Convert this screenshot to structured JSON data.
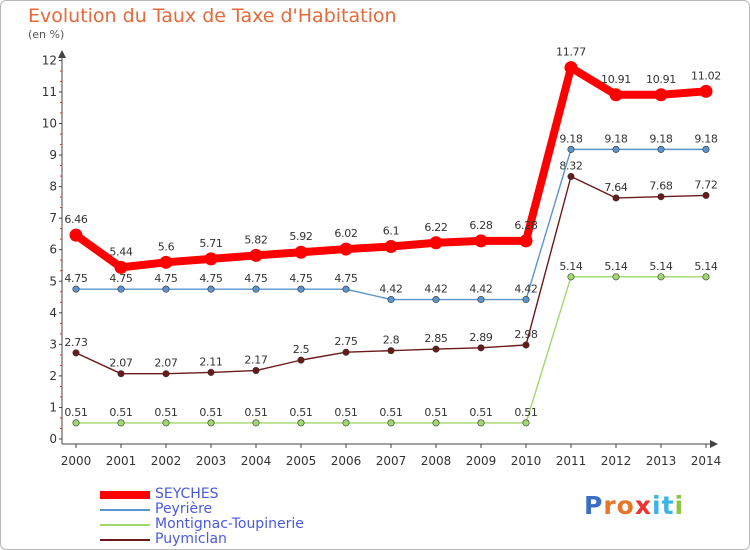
{
  "title": "Evolution du Taux de Taxe d'Habitation",
  "unit_label": "(en %)",
  "logo": {
    "text": "Proxiti",
    "letters": [
      "P",
      "r",
      "o",
      "x",
      "i",
      "t",
      "i"
    ],
    "colors": [
      "#3a6ec6",
      "#e8762a",
      "#e8762a",
      "#ef3030",
      "#3cb4e6",
      "#3cb4e6",
      "#8cc63f"
    ]
  },
  "chart_data": {
    "type": "line",
    "x": [
      "2000",
      "2001",
      "2002",
      "2003",
      "2004",
      "2005",
      "2006",
      "2007",
      "2008",
      "2009",
      "2010",
      "2011",
      "2012",
      "2013",
      "2014"
    ],
    "ylim": [
      0,
      12
    ],
    "yticks": [
      "0",
      "1",
      "2",
      "3",
      "4",
      "5",
      "6",
      "7",
      "8",
      "9",
      "10",
      "11",
      "12"
    ],
    "grid": false,
    "legend_position": "bottom-left",
    "series": [
      {
        "name": "Puymiclan",
        "color": "#6b1a1a",
        "values": [
          2.73,
          2.07,
          2.07,
          2.11,
          2.17,
          2.5,
          2.75,
          2.8,
          2.85,
          2.89,
          2.98,
          8.32,
          7.64,
          7.68,
          7.72
        ],
        "labels": [
          "2.73",
          "2.07",
          "2.07",
          "2.11",
          "2.17",
          "2.5",
          "2.75",
          "2.8",
          "2.85",
          "2.89",
          "2.98",
          "8.32",
          "7.64",
          "7.68",
          "7.72"
        ]
      },
      {
        "name": "Montignac-Toupinerie",
        "color": "#9fd86c",
        "values": [
          0.51,
          0.51,
          0.51,
          0.51,
          0.51,
          0.51,
          0.51,
          0.51,
          0.51,
          0.51,
          0.51,
          5.14,
          5.14,
          5.14,
          5.14
        ],
        "labels": [
          "0.51",
          "0.51",
          "0.51",
          "0.51",
          "0.51",
          "0.51",
          "0.51",
          "0.51",
          "0.51",
          "0.51",
          "0.51",
          "5.14",
          "5.14",
          "5.14",
          "5.14"
        ]
      },
      {
        "name": "Peyrière",
        "color": "#5b94cf",
        "values": [
          4.75,
          4.75,
          4.75,
          4.75,
          4.75,
          4.75,
          4.75,
          4.42,
          4.42,
          4.42,
          4.42,
          9.18,
          9.18,
          9.18,
          9.18
        ],
        "labels": [
          "4.75",
          "4.75",
          "4.75",
          "4.75",
          "4.75",
          "4.75",
          "4.75",
          "4.42",
          "4.42",
          "4.42",
          "4.42",
          "9.18",
          "9.18",
          "9.18",
          "9.18"
        ]
      },
      {
        "name": "SEYCHES",
        "color": "#ff0000",
        "values": [
          6.46,
          5.44,
          5.6,
          5.71,
          5.82,
          5.92,
          6.02,
          6.1,
          6.22,
          6.28,
          6.28,
          11.77,
          10.91,
          10.91,
          11.02
        ],
        "labels": [
          "6.46",
          "5.44",
          "5.6",
          "5.71",
          "5.82",
          "5.92",
          "6.02",
          "6.1",
          "6.22",
          "6.28",
          "6.28",
          "11.77",
          "10.91",
          "10.91",
          "11.02"
        ]
      }
    ],
    "legend_order": [
      "SEYCHES",
      "Peyrière",
      "Montignac-Toupinerie",
      "Puymiclan"
    ]
  }
}
